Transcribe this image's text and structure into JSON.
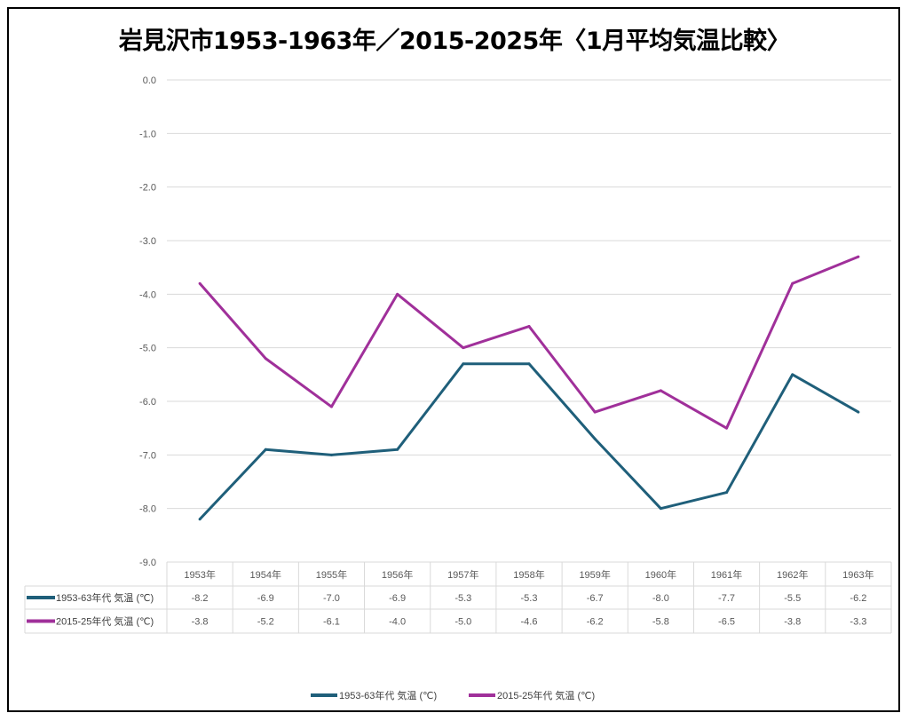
{
  "chart_data": {
    "type": "line",
    "title": "岩見沢市1953-1963年／2015-2025年〈1月平均気温比較〉",
    "categories": [
      "1953年",
      "1954年",
      "1955年",
      "1956年",
      "1957年",
      "1958年",
      "1959年",
      "1960年",
      "1961年",
      "1962年",
      "1963年"
    ],
    "series": [
      {
        "name": "1953-63年代 気温 (℃)",
        "color": "#1f5f7a",
        "values": [
          -8.2,
          -6.9,
          -7.0,
          -6.9,
          -5.3,
          -5.3,
          -6.7,
          -8.0,
          -7.7,
          -5.5,
          -6.2
        ]
      },
      {
        "name": "2015-25年代 気温 (℃)",
        "color": "#a0309a",
        "values": [
          -3.8,
          -5.2,
          -6.1,
          -4.0,
          -5.0,
          -4.6,
          -6.2,
          -5.8,
          -6.5,
          -3.8,
          -3.3
        ]
      }
    ],
    "ylim": [
      -9.0,
      0.0
    ],
    "yticks": [
      "0.0",
      "-1.0",
      "-2.0",
      "-3.0",
      "-4.0",
      "-5.0",
      "-6.0",
      "-7.0",
      "-8.0",
      "-9.0"
    ],
    "xlabel": "",
    "ylabel": "",
    "grid": true,
    "legend": "bottom",
    "data_table": true
  }
}
